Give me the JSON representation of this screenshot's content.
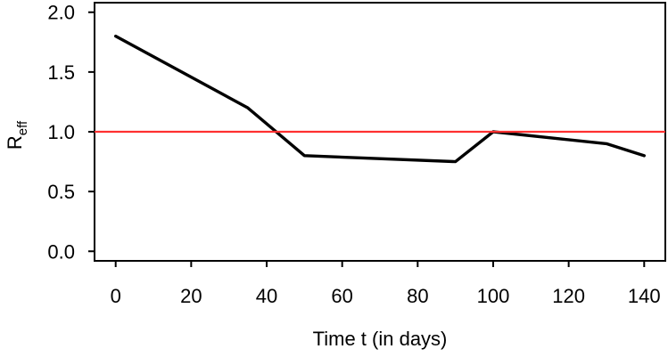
{
  "figure": {
    "description": "Effective reproduction number over time with threshold line at 1"
  },
  "chart_data": {
    "type": "line",
    "title": "",
    "xlabel": "Time t (in days)",
    "ylabel": "R_eff",
    "ylabel_base": "R",
    "ylabel_subscript": "eff",
    "x_ticks": [
      0,
      20,
      40,
      60,
      80,
      100,
      120,
      140
    ],
    "x_tick_labels": [
      "0",
      "20",
      "40",
      "60",
      "80",
      "100",
      "120",
      "140"
    ],
    "y_ticks": [
      0.0,
      0.5,
      1.0,
      1.5,
      2.0
    ],
    "y_tick_labels": [
      "0.0",
      "0.5",
      "1.0",
      "1.5",
      "2.0"
    ],
    "xlim": [
      -5.6,
      145.6
    ],
    "ylim": [
      -0.08,
      2.08
    ],
    "grid": false,
    "legend": null,
    "box_around_plot": true,
    "series": [
      {
        "name": "R_eff",
        "color": "#000000",
        "line_width": 3.4,
        "x": [
          0,
          35,
          50,
          90,
          100,
          130,
          140
        ],
        "y": [
          1.8,
          1.2,
          0.8,
          0.75,
          1.0,
          0.9,
          0.8
        ]
      }
    ],
    "reference_line": {
      "y": 1.0,
      "color": "#ff3030",
      "line_width": 2.2
    }
  },
  "colors": {
    "axis": "#000000",
    "background": "#ffffff",
    "line": "#000000",
    "reference": "#ff3030"
  }
}
